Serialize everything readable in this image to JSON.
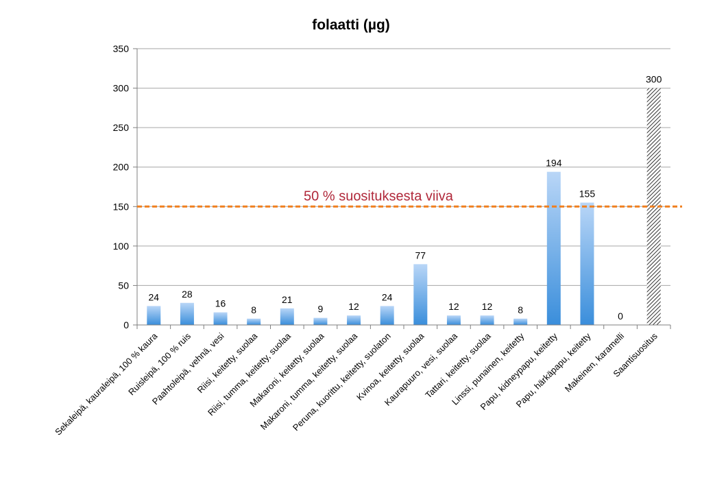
{
  "chart_data": {
    "type": "bar",
    "title": "folaatti (µg)",
    "xlabel": "",
    "ylabel": "",
    "ylim": [
      0,
      350
    ],
    "yticks": [
      0,
      50,
      100,
      150,
      200,
      250,
      300,
      350
    ],
    "grid": true,
    "legend": "none",
    "categories": [
      "Sekaleipä, kauraleipä, 100 % kaura",
      "Ruisleipä, 100 % ruis",
      "Paahtoleipä, vehnä, vesi",
      "Riisi, keitetty, suolaa",
      "Riisi, tumma, keitetty, suolaa",
      "Makaroni, keitetty, suolaa",
      "Makaroni, tumma, keitetty, suolaa",
      "Peruna, kuorittu, keitetty, suolaton",
      "Kvinoa, keitetty, suolaa",
      "Kaurapuuro, vesi, suolaa",
      "Tattari, keitetty, suolaa",
      "Linssi, punainen, keitetty",
      "Papu, kidneypapu, keitetty",
      "Papu, härkäpapu, keitetty",
      "Makeinen, karamelli",
      "Saantisuositus"
    ],
    "values": [
      24,
      28,
      16,
      8,
      21,
      9,
      12,
      24,
      77,
      12,
      12,
      8,
      194,
      155,
      0,
      300
    ],
    "data_labels": [
      "24",
      "28",
      "16",
      "8",
      "21",
      "9",
      "12",
      "24",
      "77",
      "12",
      "12",
      "8",
      "194",
      "155",
      "0",
      "300"
    ],
    "bar_style": [
      "gradient",
      "gradient",
      "gradient",
      "gradient",
      "gradient",
      "gradient",
      "gradient",
      "gradient",
      "gradient",
      "gradient",
      "gradient",
      "gradient",
      "gradient",
      "gradient",
      "gradient",
      "hatched"
    ],
    "reference_line": {
      "value": 150,
      "label": "50 % suosituksesta viiva",
      "color": "#f07f1e",
      "label_color": "#b0283a"
    },
    "colors": {
      "bar_top": "#b9d6f7",
      "bar_bottom": "#3a8edb",
      "hatch": "#333333",
      "grid": "#a6a6a6",
      "axis": "#7f7f7f"
    }
  }
}
